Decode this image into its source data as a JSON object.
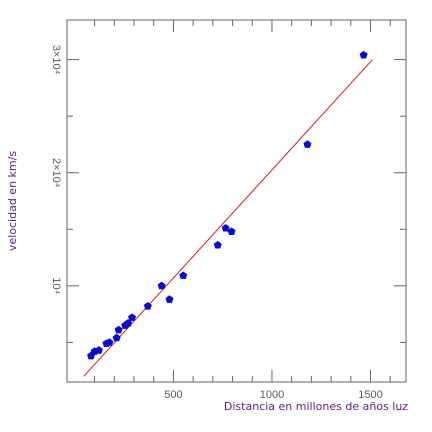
{
  "chart_data": {
    "type": "scatter",
    "title": "",
    "xlabel": "Distancia en millones de años luz",
    "ylabel": "velocidad en km/s",
    "xlim": [
      -40,
      1680
    ],
    "ylim": [
      1500,
      33500
    ],
    "x_major_ticks": [
      500,
      1000,
      1500
    ],
    "x_tick_labels": [
      "500",
      "1000",
      "1500"
    ],
    "y_major_ticks": [
      10000,
      20000,
      30000
    ],
    "y_tick_labels": [
      "10⁴",
      "2×10⁴",
      "3×10⁴"
    ],
    "grid": false,
    "legend": "none",
    "colors": {
      "points": "#0a0ad0",
      "fit_line": "#cc2020",
      "axis_titles": "#5b1e7e"
    },
    "series": [
      {
        "x": [
          82,
          100,
          122,
          160,
          175,
          212,
          222,
          255,
          270,
          290,
          370,
          440,
          480,
          550,
          725,
          765,
          795,
          1180,
          1465
        ],
        "y": [
          3800,
          4200,
          4300,
          4900,
          5000,
          5400,
          6100,
          6500,
          6700,
          7200,
          8200,
          10000,
          8800,
          10900,
          13600,
          15100,
          14800,
          22500,
          30400
        ]
      }
    ],
    "fit_line": {
      "x": [
        45,
        1510
      ],
      "y": [
        2000,
        30000
      ]
    }
  }
}
